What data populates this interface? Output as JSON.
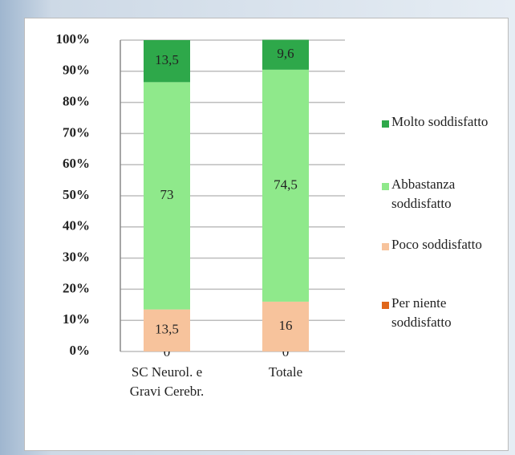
{
  "chart_data": {
    "type": "stacked_bar",
    "categories": [
      "SC Neurol. e Gravi Cerebr.",
      "Totale"
    ],
    "series": [
      {
        "name": "Per niente soddisfatto",
        "color": "#e0661a",
        "values": [
          0,
          0
        ],
        "value_labels": [
          "0",
          "0"
        ]
      },
      {
        "name": "Poco soddisfatto",
        "color": "#f7c39c",
        "values": [
          13.5,
          16
        ],
        "value_labels": [
          "13,5",
          "16"
        ]
      },
      {
        "name": "Abbastanza soddisfatto",
        "color": "#8fe98b",
        "values": [
          73,
          74.5
        ],
        "value_labels": [
          "73",
          "74,5"
        ]
      },
      {
        "name": "Molto soddisfatto",
        "color": "#2ea84a",
        "values": [
          13.5,
          9.6
        ],
        "value_labels": [
          "13,5",
          "9,6"
        ]
      }
    ],
    "ylim": [
      0,
      100
    ],
    "yticks": [
      {
        "value": 0,
        "label": "0%"
      },
      {
        "value": 10,
        "label": "10%"
      },
      {
        "value": 20,
        "label": "20%"
      },
      {
        "value": 30,
        "label": "30%"
      },
      {
        "value": 40,
        "label": "40%"
      },
      {
        "value": 50,
        "label": "50%"
      },
      {
        "value": 60,
        "label": "60%"
      },
      {
        "value": 70,
        "label": "70%"
      },
      {
        "value": 80,
        "label": "80%"
      },
      {
        "value": 90,
        "label": "90%"
      },
      {
        "value": 100,
        "label": "100%"
      }
    ],
    "grid": true,
    "legend": "right"
  }
}
